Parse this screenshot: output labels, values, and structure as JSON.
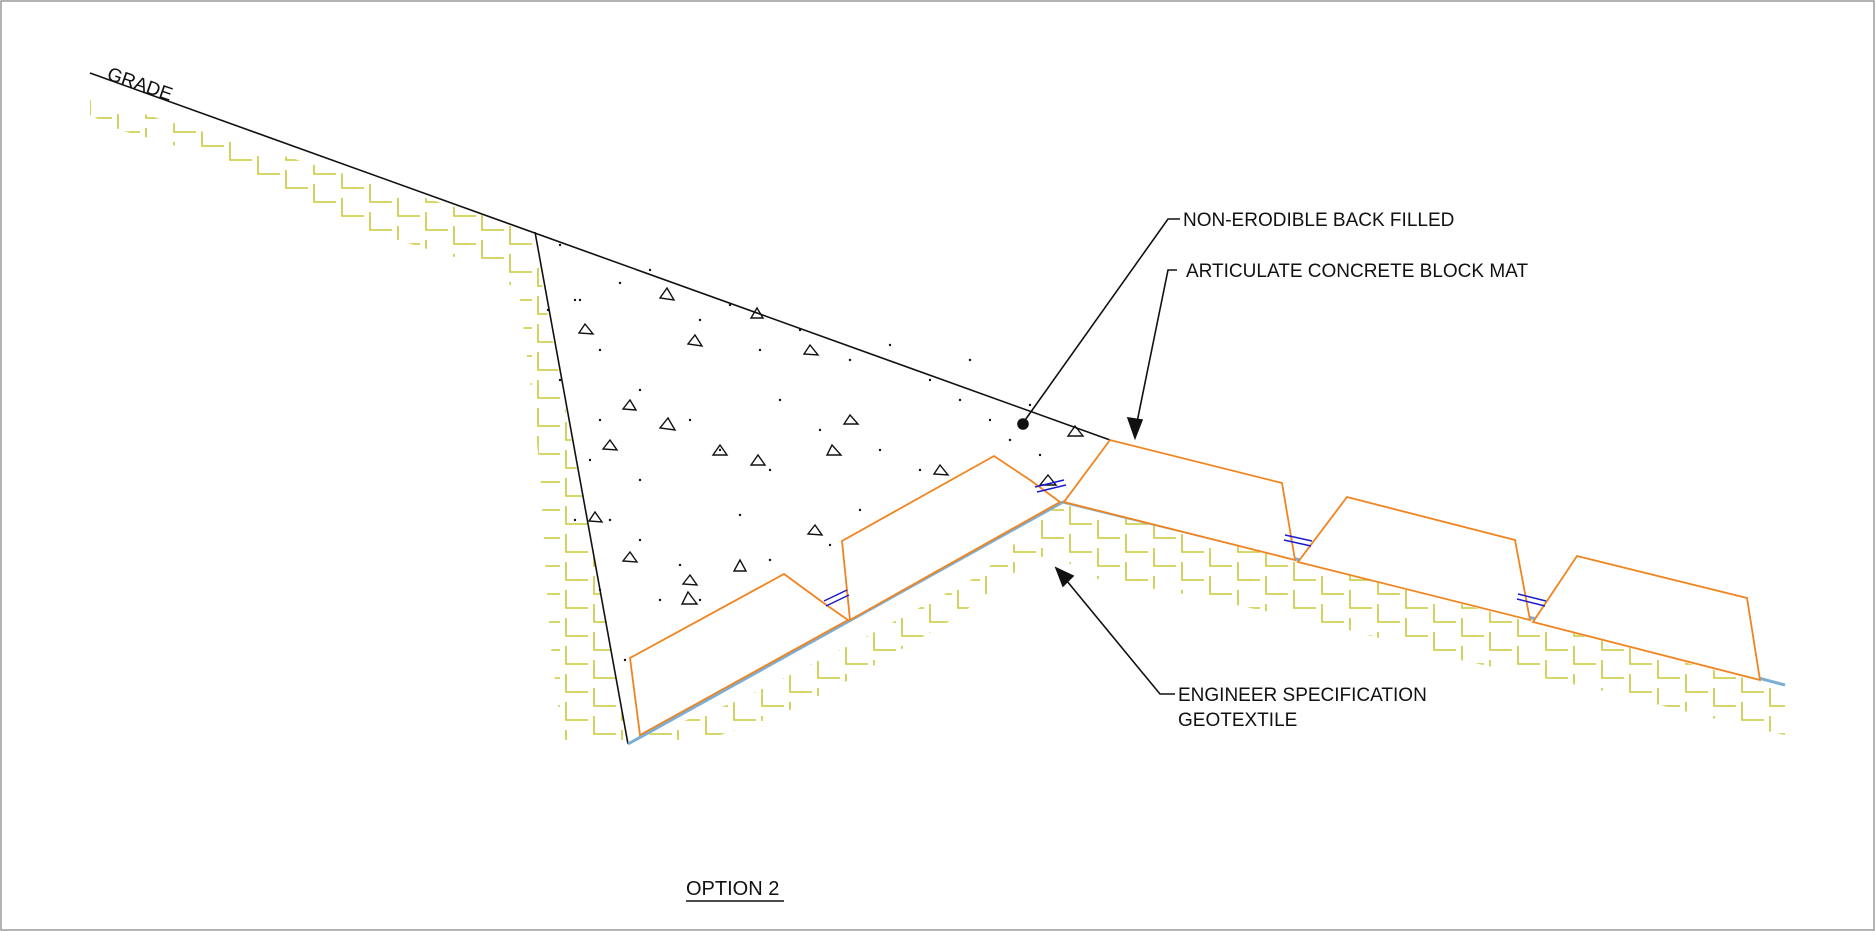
{
  "diagram": {
    "labels": {
      "grade": "GRADE",
      "backfill": "NON-ERODIBLE BACK FILLED",
      "block_mat": "ARTICULATE CONCRETE BLOCK MAT",
      "geotextile_line1": "ENGINEER SPECIFICATION",
      "geotextile_line2": "GEOTEXTILE"
    },
    "title": "OPTION 2",
    "colors": {
      "soil_hatch": "#c8c83a",
      "block_outline": "#f0841f",
      "geotextile": "#7aaed6",
      "connector": "#1a1ad0",
      "linework": "#111111"
    },
    "legend_symbols": [
      "soil-hatch",
      "backfill-stipple"
    ]
  }
}
